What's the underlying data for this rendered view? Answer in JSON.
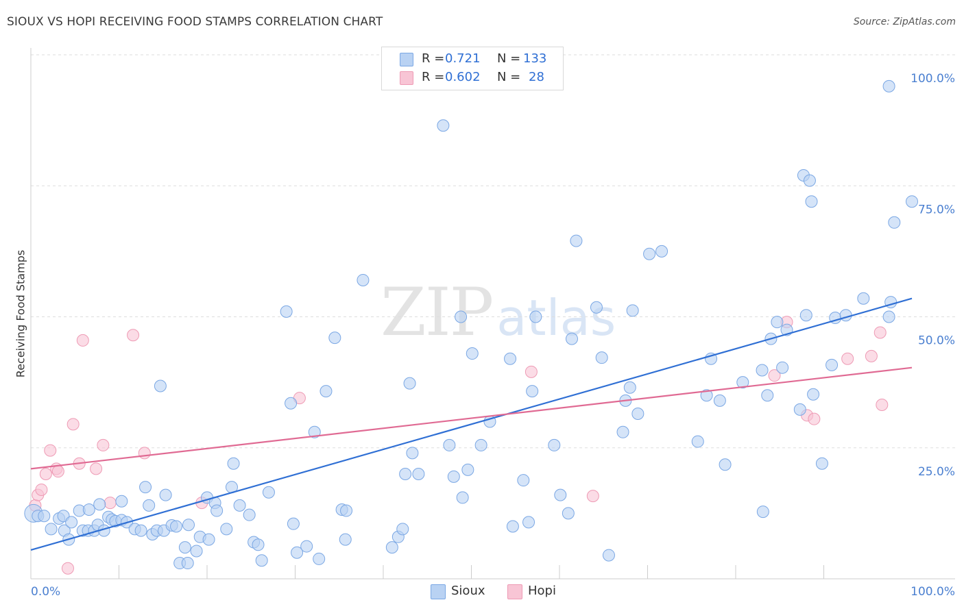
{
  "title": "SIOUX VS HOPI RECEIVING FOOD STAMPS CORRELATION CHART",
  "source": "Source: ZipAtlas.com",
  "legend": {
    "sioux": {
      "r_label": "R =",
      "r_value": "0.721",
      "n_label": "N =",
      "n_value": "133"
    },
    "hopi": {
      "r_label": "R =",
      "r_value": "0.602",
      "n_label": "N =",
      "n_value": "28"
    }
  },
  "bottom_legend": {
    "sioux": "Sioux",
    "hopi": "Hopi"
  },
  "watermark": {
    "zip": "ZIP",
    "atlas": "atlas"
  },
  "colors": {
    "sioux_fill": "#b9d2f3",
    "sioux_stroke": "#7aa7e4",
    "sioux_line": "#2f6fd4",
    "hopi_fill": "#f8c5d5",
    "hopi_stroke": "#ee9ab4",
    "hopi_line": "#e06a93",
    "tick_text": "#4a7fd0",
    "grid": "#dddddd"
  },
  "chart_data": {
    "type": "scatter",
    "title": "SIOUX VS HOPI RECEIVING FOOD STAMPS CORRELATION CHART",
    "xlabel": "",
    "ylabel": "Receiving Food Stamps",
    "xlim": [
      0,
      100
    ],
    "ylim": [
      0,
      100
    ],
    "x_tick_labels": [
      "0.0%",
      "100.0%"
    ],
    "y_ticks": [
      25,
      50,
      75,
      100
    ],
    "y_tick_labels": [
      "25.0%",
      "50.0%",
      "75.0%",
      "100.0%"
    ],
    "grid": true,
    "series": [
      {
        "name": "Sioux",
        "r": 0.721,
        "n": 133,
        "trend": [
          [
            0,
            5.5
          ],
          [
            100,
            53.5
          ]
        ],
        "points": [
          [
            0.3,
            12.5
          ],
          [
            0.8,
            12
          ],
          [
            1.5,
            12
          ],
          [
            2.3,
            9.5
          ],
          [
            3.2,
            11.5
          ],
          [
            3.7,
            12
          ],
          [
            3.8,
            9.2
          ],
          [
            4.3,
            7.5
          ],
          [
            4.6,
            10.8
          ],
          [
            5.5,
            13
          ],
          [
            5.9,
            9.2
          ],
          [
            6.5,
            9.2
          ],
          [
            6.6,
            13.2
          ],
          [
            7.2,
            9.2
          ],
          [
            7.6,
            10.3
          ],
          [
            7.8,
            14.2
          ],
          [
            8.3,
            9.2
          ],
          [
            8.8,
            11.8
          ],
          [
            9.2,
            11.3
          ],
          [
            9.6,
            11
          ],
          [
            10.3,
            11.2
          ],
          [
            10.3,
            14.8
          ],
          [
            10.9,
            10.8
          ],
          [
            11.8,
            9.5
          ],
          [
            12.5,
            9.2
          ],
          [
            13.4,
            14
          ],
          [
            13.0,
            17.5
          ],
          [
            13.8,
            8.5
          ],
          [
            14.3,
            9.2
          ],
          [
            15.1,
            9.2
          ],
          [
            14.7,
            36.8
          ],
          [
            15.3,
            16
          ],
          [
            16.0,
            10.2
          ],
          [
            16.5,
            10
          ],
          [
            16.9,
            3
          ],
          [
            17.5,
            6
          ],
          [
            17.9,
            10.3
          ],
          [
            17.8,
            3
          ],
          [
            18.8,
            5.3
          ],
          [
            19.2,
            8
          ],
          [
            20.0,
            15.5
          ],
          [
            20.2,
            7.5
          ],
          [
            20.9,
            14.5
          ],
          [
            21.1,
            13
          ],
          [
            22.2,
            9.5
          ],
          [
            22.8,
            17.5
          ],
          [
            23.0,
            22
          ],
          [
            23.7,
            14
          ],
          [
            24.8,
            12.2
          ],
          [
            25.3,
            7
          ],
          [
            25.8,
            6.5
          ],
          [
            26.2,
            3.5
          ],
          [
            27.0,
            16.5
          ],
          [
            29.0,
            51
          ],
          [
            29.5,
            33.5
          ],
          [
            29.8,
            10.5
          ],
          [
            30.2,
            5
          ],
          [
            31.3,
            6.2
          ],
          [
            32.2,
            28
          ],
          [
            32.7,
            3.8
          ],
          [
            33.5,
            35.8
          ],
          [
            34.5,
            46
          ],
          [
            35.3,
            13.2
          ],
          [
            35.7,
            7.5
          ],
          [
            35.8,
            13
          ],
          [
            37.7,
            57
          ],
          [
            41.0,
            6
          ],
          [
            41.7,
            8
          ],
          [
            42.2,
            9.5
          ],
          [
            42.5,
            20
          ],
          [
            43.0,
            37.3
          ],
          [
            43.3,
            24
          ],
          [
            44.0,
            20
          ],
          [
            46.8,
            86.5
          ],
          [
            47.5,
            25.5
          ],
          [
            48.0,
            19.5
          ],
          [
            48.8,
            50
          ],
          [
            49.0,
            15.5
          ],
          [
            49.6,
            20.8
          ],
          [
            50.1,
            43
          ],
          [
            51.1,
            25.5
          ],
          [
            52.1,
            30
          ],
          [
            54.4,
            42
          ],
          [
            54.7,
            10
          ],
          [
            55.9,
            18.8
          ],
          [
            56.5,
            10.8
          ],
          [
            56.9,
            35.8
          ],
          [
            57.3,
            50
          ],
          [
            59.4,
            25.5
          ],
          [
            60.1,
            16
          ],
          [
            61.0,
            12.5
          ],
          [
            61.4,
            45.8
          ],
          [
            61.9,
            64.5
          ],
          [
            64.2,
            51.8
          ],
          [
            64.8,
            42.2
          ],
          [
            65.6,
            4.5
          ],
          [
            67.2,
            28
          ],
          [
            68.3,
            51.2
          ],
          [
            68.0,
            36.5
          ],
          [
            67.5,
            34
          ],
          [
            68.9,
            31.5
          ],
          [
            70.2,
            62
          ],
          [
            71.6,
            62.5
          ],
          [
            75.7,
            26.2
          ],
          [
            76.7,
            35
          ],
          [
            77.2,
            42
          ],
          [
            78.2,
            34
          ],
          [
            78.8,
            21.8
          ],
          [
            80.8,
            37.5
          ],
          [
            83.0,
            39.8
          ],
          [
            83.1,
            12.8
          ],
          [
            83.6,
            35
          ],
          [
            84.0,
            45.8
          ],
          [
            85.3,
            40.3
          ],
          [
            84.7,
            49
          ],
          [
            85.8,
            47.5
          ],
          [
            87.3,
            32.3
          ],
          [
            87.7,
            77
          ],
          [
            88.0,
            50.3
          ],
          [
            88.4,
            76
          ],
          [
            88.6,
            72
          ],
          [
            88.8,
            35.2
          ],
          [
            89.8,
            22
          ],
          [
            90.9,
            40.8
          ],
          [
            91.3,
            49.8
          ],
          [
            92.5,
            50.3
          ],
          [
            94.5,
            53.5
          ],
          [
            97.4,
            94
          ],
          [
            97.4,
            50
          ],
          [
            97.6,
            52.8
          ],
          [
            98.0,
            68
          ],
          [
            100,
            72
          ]
        ]
      },
      {
        "name": "Hopi",
        "r": 0.602,
        "n": 28,
        "trend": [
          [
            0,
            21
          ],
          [
            100,
            40.3
          ]
        ],
        "points": [
          [
            0.5,
            14
          ],
          [
            0.8,
            16
          ],
          [
            1.2,
            17
          ],
          [
            1.7,
            20
          ],
          [
            2.2,
            24.5
          ],
          [
            2.9,
            21
          ],
          [
            3.1,
            20.5
          ],
          [
            4.2,
            2
          ],
          [
            4.8,
            29.5
          ],
          [
            5.5,
            22
          ],
          [
            5.9,
            45.5
          ],
          [
            7.4,
            21
          ],
          [
            8.2,
            25.5
          ],
          [
            9.0,
            14.5
          ],
          [
            11.6,
            46.5
          ],
          [
            12.9,
            24
          ],
          [
            19.4,
            14.5
          ],
          [
            30.5,
            34.5
          ],
          [
            56.8,
            39.5
          ],
          [
            63.8,
            15.8
          ],
          [
            84.4,
            38.8
          ],
          [
            85.8,
            49
          ],
          [
            88.1,
            31.2
          ],
          [
            88.9,
            30.5
          ],
          [
            92.7,
            42
          ],
          [
            95.4,
            42.5
          ],
          [
            96.4,
            47
          ],
          [
            96.6,
            33.2
          ]
        ]
      }
    ]
  }
}
